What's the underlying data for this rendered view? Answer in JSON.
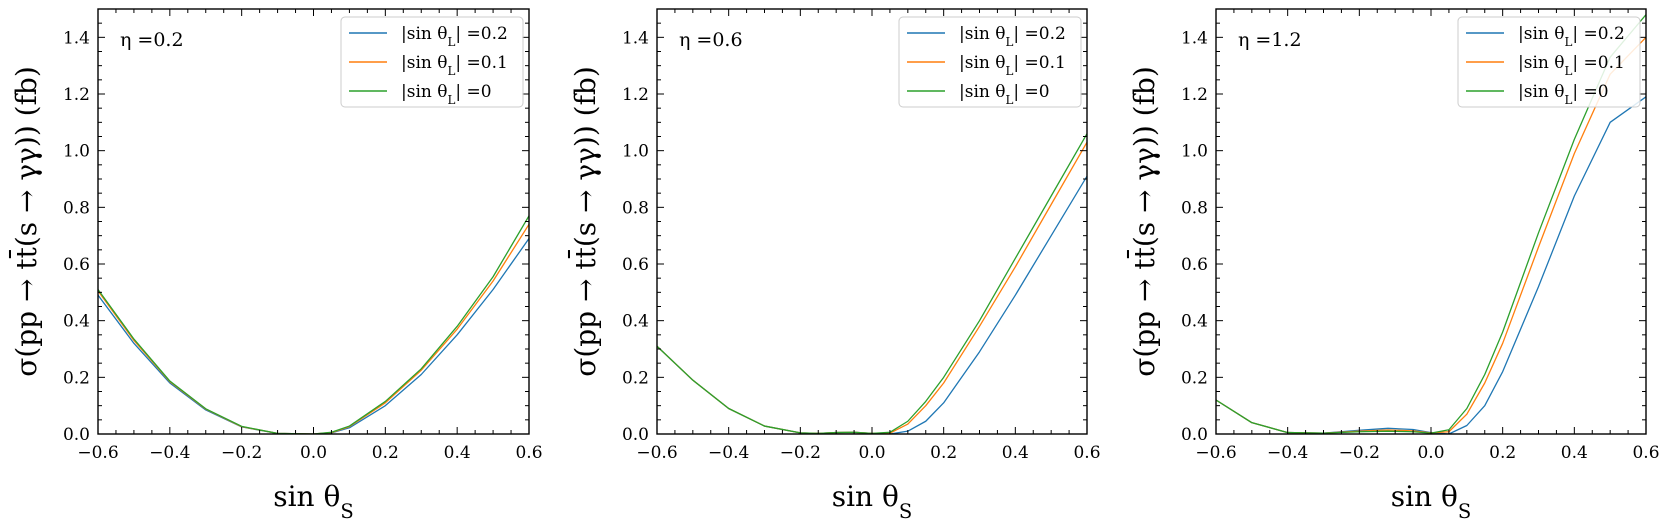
{
  "chart_data": [
    {
      "type": "line",
      "annotation": "η =0.2",
      "xlabel": "sin θ_S",
      "ylabel": "σ(pp → tt̄(s → γγ)) (fb)",
      "xlim": [
        -0.6,
        0.6
      ],
      "ylim": [
        0,
        1.5
      ],
      "xticks": [
        -0.6,
        -0.4,
        -0.2,
        0.0,
        0.2,
        0.4,
        0.6
      ],
      "xtick_labels": [
        "−0.6",
        "−0.4",
        "−0.2",
        "0.0",
        "0.2",
        "0.4",
        "0.6"
      ],
      "yticks": [
        0.0,
        0.2,
        0.4,
        0.6,
        0.8,
        1.0,
        1.2,
        1.4
      ],
      "ytick_labels": [
        "0.0",
        "0.2",
        "0.4",
        "0.6",
        "0.8",
        "1.0",
        "1.2",
        "1.4"
      ],
      "legend_position": "top-right",
      "series": [
        {
          "name": "|sin θ_L| =0.2",
          "color": "#1f77b4",
          "x": [
            -0.6,
            -0.5,
            -0.4,
            -0.3,
            -0.2,
            -0.1,
            0.0,
            0.05,
            0.1,
            0.2,
            0.3,
            0.4,
            0.5,
            0.6
          ],
          "y": [
            0.49,
            0.32,
            0.18,
            0.085,
            0.025,
            0.002,
            0.0,
            0.004,
            0.022,
            0.1,
            0.21,
            0.35,
            0.51,
            0.69
          ]
        },
        {
          "name": "|sin θ_L| =0.1",
          "color": "#ff7f0e",
          "x": [
            -0.6,
            -0.5,
            -0.4,
            -0.3,
            -0.2,
            -0.1,
            0.0,
            0.05,
            0.1,
            0.2,
            0.3,
            0.4,
            0.5,
            0.6
          ],
          "y": [
            0.505,
            0.33,
            0.185,
            0.088,
            0.026,
            0.002,
            0.0,
            0.005,
            0.026,
            0.11,
            0.225,
            0.37,
            0.54,
            0.74
          ]
        },
        {
          "name": "|sin θ_L| =0",
          "color": "#2ca02c",
          "x": [
            -0.6,
            -0.5,
            -0.4,
            -0.3,
            -0.2,
            -0.1,
            0.0,
            0.05,
            0.1,
            0.2,
            0.3,
            0.4,
            0.5,
            0.6
          ],
          "y": [
            0.51,
            0.335,
            0.187,
            0.089,
            0.027,
            0.002,
            0.0,
            0.006,
            0.028,
            0.115,
            0.23,
            0.38,
            0.555,
            0.77
          ]
        }
      ]
    },
    {
      "type": "line",
      "annotation": "η =0.6",
      "xlabel": "sin θ_S",
      "ylabel": "σ(pp → tt̄(s → γγ)) (fb)",
      "xlim": [
        -0.6,
        0.6
      ],
      "ylim": [
        0,
        1.5
      ],
      "xticks": [
        -0.6,
        -0.4,
        -0.2,
        0.0,
        0.2,
        0.4,
        0.6
      ],
      "xtick_labels": [
        "−0.6",
        "−0.4",
        "−0.2",
        "0.0",
        "0.2",
        "0.4",
        "0.6"
      ],
      "yticks": [
        0.0,
        0.2,
        0.4,
        0.6,
        0.8,
        1.0,
        1.2,
        1.4
      ],
      "ytick_labels": [
        "0.0",
        "0.2",
        "0.4",
        "0.6",
        "0.8",
        "1.0",
        "1.2",
        "1.4"
      ],
      "legend_position": "top-right",
      "series": [
        {
          "name": "|sin θ_L| =0.2",
          "color": "#1f77b4",
          "x": [
            -0.6,
            -0.5,
            -0.4,
            -0.3,
            -0.2,
            -0.15,
            -0.1,
            -0.05,
            0.0,
            0.05,
            0.1,
            0.15,
            0.2,
            0.3,
            0.4,
            0.5,
            0.6
          ],
          "y": [
            0.31,
            0.19,
            0.09,
            0.028,
            0.004,
            0.002,
            0.005,
            0.006,
            0.002,
            0.0,
            0.01,
            0.045,
            0.11,
            0.29,
            0.49,
            0.7,
            0.91
          ]
        },
        {
          "name": "|sin θ_L| =0.1",
          "color": "#ff7f0e",
          "x": [
            -0.6,
            -0.5,
            -0.4,
            -0.3,
            -0.2,
            -0.15,
            -0.1,
            -0.05,
            0.0,
            0.05,
            0.1,
            0.15,
            0.2,
            0.3,
            0.4,
            0.5,
            0.6
          ],
          "y": [
            0.31,
            0.19,
            0.09,
            0.028,
            0.004,
            0.002,
            0.005,
            0.006,
            0.002,
            0.003,
            0.035,
            0.1,
            0.18,
            0.38,
            0.59,
            0.81,
            1.03
          ]
        },
        {
          "name": "|sin θ_L| =0",
          "color": "#2ca02c",
          "x": [
            -0.6,
            -0.5,
            -0.4,
            -0.3,
            -0.2,
            -0.15,
            -0.1,
            -0.05,
            0.0,
            0.05,
            0.1,
            0.15,
            0.2,
            0.3,
            0.4,
            0.5,
            0.6
          ],
          "y": [
            0.31,
            0.19,
            0.09,
            0.028,
            0.004,
            0.002,
            0.005,
            0.006,
            0.002,
            0.006,
            0.045,
            0.115,
            0.2,
            0.4,
            0.62,
            0.84,
            1.06
          ]
        }
      ]
    },
    {
      "type": "line",
      "annotation": "η =1.2",
      "xlabel": "sin θ_S",
      "ylabel": "σ(pp → tt̄(s → γγ)) (fb)",
      "xlim": [
        -0.6,
        0.6
      ],
      "ylim": [
        0,
        1.5
      ],
      "xticks": [
        -0.6,
        -0.4,
        -0.2,
        0.0,
        0.2,
        0.4,
        0.6
      ],
      "xtick_labels": [
        "−0.6",
        "−0.4",
        "−0.2",
        "0.0",
        "0.2",
        "0.4",
        "0.6"
      ],
      "yticks": [
        0.0,
        0.2,
        0.4,
        0.6,
        0.8,
        1.0,
        1.2,
        1.4
      ],
      "ytick_labels": [
        "0.0",
        "0.2",
        "0.4",
        "0.6",
        "0.8",
        "1.0",
        "1.2",
        "1.4"
      ],
      "legend_position": "top-right",
      "series": [
        {
          "name": "|sin θ_L| =0.2",
          "color": "#1f77b4",
          "x": [
            -0.6,
            -0.5,
            -0.4,
            -0.3,
            -0.2,
            -0.12,
            -0.05,
            0.0,
            0.05,
            0.1,
            0.15,
            0.2,
            0.3,
            0.4,
            0.5,
            0.6
          ],
          "y": [
            0.12,
            0.04,
            0.005,
            0.003,
            0.013,
            0.02,
            0.016,
            0.005,
            0.0,
            0.03,
            0.1,
            0.22,
            0.52,
            0.84,
            1.1,
            1.19
          ]
        },
        {
          "name": "|sin θ_L| =0.1",
          "color": "#ff7f0e",
          "x": [
            -0.6,
            -0.5,
            -0.4,
            -0.3,
            -0.2,
            -0.12,
            -0.05,
            0.0,
            0.05,
            0.1,
            0.15,
            0.2,
            0.3,
            0.4,
            0.5,
            0.6
          ],
          "y": [
            0.12,
            0.04,
            0.005,
            0.003,
            0.01,
            0.014,
            0.011,
            0.004,
            0.008,
            0.07,
            0.18,
            0.32,
            0.66,
            0.99,
            1.27,
            1.4
          ]
        },
        {
          "name": "|sin θ_L| =0",
          "color": "#2ca02c",
          "x": [
            -0.6,
            -0.5,
            -0.4,
            -0.3,
            -0.2,
            -0.12,
            -0.05,
            0.0,
            0.05,
            0.1,
            0.15,
            0.2,
            0.3,
            0.4,
            0.5,
            0.6
          ],
          "y": [
            0.12,
            0.04,
            0.005,
            0.003,
            0.008,
            0.01,
            0.008,
            0.003,
            0.015,
            0.09,
            0.21,
            0.36,
            0.71,
            1.04,
            1.33,
            1.48
          ]
        }
      ]
    }
  ]
}
